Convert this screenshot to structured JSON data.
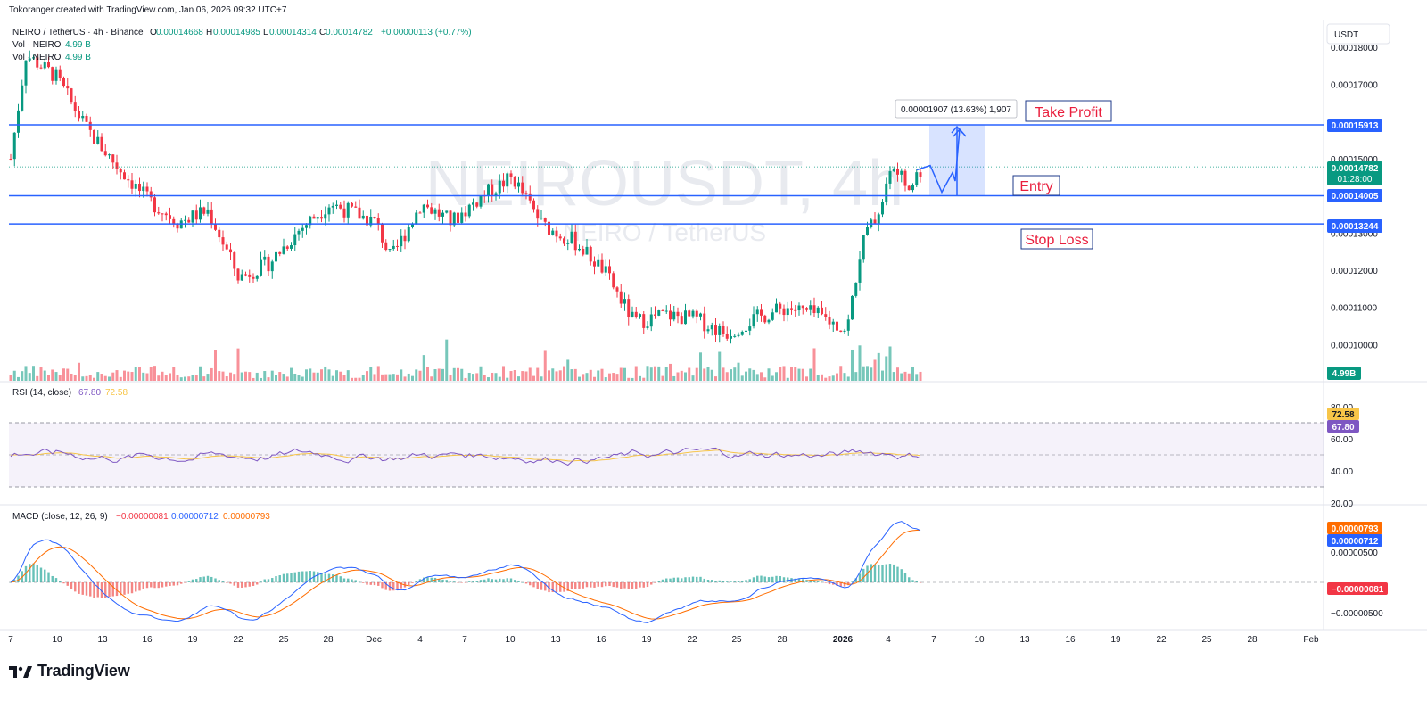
{
  "header": {
    "caption": "Tokoranger created with TradingView.com, Jan 06, 2026 09:32 UTC+7"
  },
  "footer": {
    "brand": "TradingView"
  },
  "symbol": {
    "line": "NEIRO / TetherUS · 4h · Binance",
    "open_label": "O",
    "open": "0.00014668",
    "high_label": "H",
    "high": "0.00014985",
    "low_label": "L",
    "low": "0.00014314",
    "close_label": "C",
    "close": "0.00014782",
    "change": "+0.00000113 (+0.77%)",
    "vol1_label": "Vol · NEIRO",
    "vol1_value": "4.99 B",
    "vol2_label": "Vol · NEIRO",
    "vol2_value": "4.99 B"
  },
  "watermark": {
    "title": "NEIROUSDT, 4h",
    "subtitle": "NEIRO / TetherUS"
  },
  "currency_button": "USDT",
  "annotations": {
    "measure": "0.00001907 (13.63%) 1,907",
    "take_profit": "Take Profit",
    "entry": "Entry",
    "stop_loss": "Stop Loss"
  },
  "price_tags": {
    "take_profit": "0.00015913",
    "last_price": "0.00014782",
    "countdown": "01:28:00",
    "entry": "0.00014005",
    "stop_loss": "0.00013244",
    "volume": "4.99B"
  },
  "price_axis": [
    "0.00018000",
    "0.00017000",
    "0.00015000",
    "0.00013000",
    "0.00012000",
    "0.00011000",
    "0.00010000"
  ],
  "rsi": {
    "label": "RSI (14, close)",
    "value": "67.80",
    "ma_value": "72.58",
    "axis": [
      "80.00",
      "60.00",
      "40.00",
      "20.00"
    ],
    "tag_ma": "72.58",
    "tag_rsi": "67.80"
  },
  "macd": {
    "label": "MACD (close, 12, 26, 9)",
    "hist": "−0.00000081",
    "macd": "0.00000712",
    "signal": "0.00000793",
    "axis": [
      "0.00000500",
      "−0.00000500"
    ],
    "tag_signal": "0.00000793",
    "tag_macd": "0.00000712",
    "tag_hist": "−0.00000081"
  },
  "x_axis": [
    {
      "label": "7",
      "bold": false
    },
    {
      "label": "10",
      "bold": false
    },
    {
      "label": "13",
      "bold": false
    },
    {
      "label": "16",
      "bold": false
    },
    {
      "label": "19",
      "bold": false
    },
    {
      "label": "22",
      "bold": false
    },
    {
      "label": "25",
      "bold": false
    },
    {
      "label": "28",
      "bold": false
    },
    {
      "label": "Dec",
      "bold": false
    },
    {
      "label": "4",
      "bold": false
    },
    {
      "label": "7",
      "bold": false
    },
    {
      "label": "10",
      "bold": false
    },
    {
      "label": "13",
      "bold": false
    },
    {
      "label": "16",
      "bold": false
    },
    {
      "label": "19",
      "bold": false
    },
    {
      "label": "22",
      "bold": false
    },
    {
      "label": "25",
      "bold": false
    },
    {
      "label": "28",
      "bold": false
    },
    {
      "label": "2026",
      "bold": true
    },
    {
      "label": "4",
      "bold": false
    },
    {
      "label": "7",
      "bold": false
    },
    {
      "label": "10",
      "bold": false
    },
    {
      "label": "13",
      "bold": false
    },
    {
      "label": "16",
      "bold": false
    },
    {
      "label": "19",
      "bold": false
    },
    {
      "label": "22",
      "bold": false
    },
    {
      "label": "25",
      "bold": false
    },
    {
      "label": "28",
      "bold": false
    },
    {
      "label": "Feb",
      "bold": false
    }
  ],
  "colors": {
    "up": "#089981",
    "down": "#f23645",
    "level_line": "#2962ff",
    "annotation_text": "#e91e3c",
    "rsi_line": "#7e57c2",
    "rsi_ma": "#f7c548",
    "macd_line": "#2962ff",
    "signal_line": "#ff6d00",
    "tag_blue": "#2962ff",
    "tag_green": "#089981",
    "tag_red": "#f23645"
  },
  "chart_data": {
    "type": "candlestick",
    "symbol": "NEIROUSDT",
    "interval": "4h",
    "y_range": [
      9.5e-05,
      0.000185
    ],
    "levels": [
      {
        "name": "Take Profit",
        "price": 0.00015913
      },
      {
        "name": "Entry",
        "price": 0.00014005
      },
      {
        "name": "Stop Loss",
        "price": 0.00013244
      }
    ],
    "last_price": 0.00014782,
    "approx_path": [
      {
        "date": "Nov 7",
        "close": 0.00015
      },
      {
        "date": "Nov 8",
        "close": 0.000178
      },
      {
        "date": "Nov 10",
        "close": 0.000172
      },
      {
        "date": "Nov 12",
        "close": 0.000158
      },
      {
        "date": "Nov 14",
        "close": 0.000148
      },
      {
        "date": "Nov 16",
        "close": 0.000139
      },
      {
        "date": "Nov 18",
        "close": 0.000133
      },
      {
        "date": "Nov 20",
        "close": 0.000136
      },
      {
        "date": "Nov 22",
        "close": 0.000118
      },
      {
        "date": "Nov 24",
        "close": 0.000122
      },
      {
        "date": "Nov 26",
        "close": 0.000131
      },
      {
        "date": "Nov 28",
        "close": 0.000138
      },
      {
        "date": "Dec 1",
        "close": 0.000133
      },
      {
        "date": "Dec 2",
        "close": 0.000123
      },
      {
        "date": "Dec 4",
        "close": 0.000138
      },
      {
        "date": "Dec 6",
        "close": 0.000133
      },
      {
        "date": "Dec 8",
        "close": 0.00014
      },
      {
        "date": "Dec 10",
        "close": 0.000145
      },
      {
        "date": "Dec 12",
        "close": 0.000132
      },
      {
        "date": "Dec 14",
        "close": 0.000128
      },
      {
        "date": "Dec 16",
        "close": 0.00012
      },
      {
        "date": "Dec 18",
        "close": 0.000106
      },
      {
        "date": "Dec 20",
        "close": 0.000108
      },
      {
        "date": "Dec 22",
        "close": 0.000107
      },
      {
        "date": "Dec 24",
        "close": 0.000103
      },
      {
        "date": "Dec 26",
        "close": 0.000107
      },
      {
        "date": "Dec 28",
        "close": 0.00011
      },
      {
        "date": "Dec 30",
        "close": 0.000108
      },
      {
        "date": "Jan 1",
        "close": 0.000104
      },
      {
        "date": "Jan 2",
        "close": 0.000128
      },
      {
        "date": "Jan 3",
        "close": 0.000135
      },
      {
        "date": "Jan 4",
        "close": 0.000148
      },
      {
        "date": "Jan 5",
        "close": 0.000142
      },
      {
        "date": "Jan 6",
        "close": 0.00014782
      }
    ],
    "projection_path": [
      {
        "date": "Jan 6",
        "close": 0.000147
      },
      {
        "date": "Jan 7",
        "close": 0.000141
      },
      {
        "date": "Jan 8",
        "close": 0.000147
      },
      {
        "date": "Jan 8",
        "close": 0.000143
      },
      {
        "date": "Jan 9",
        "close": 0.00015913
      }
    ]
  }
}
